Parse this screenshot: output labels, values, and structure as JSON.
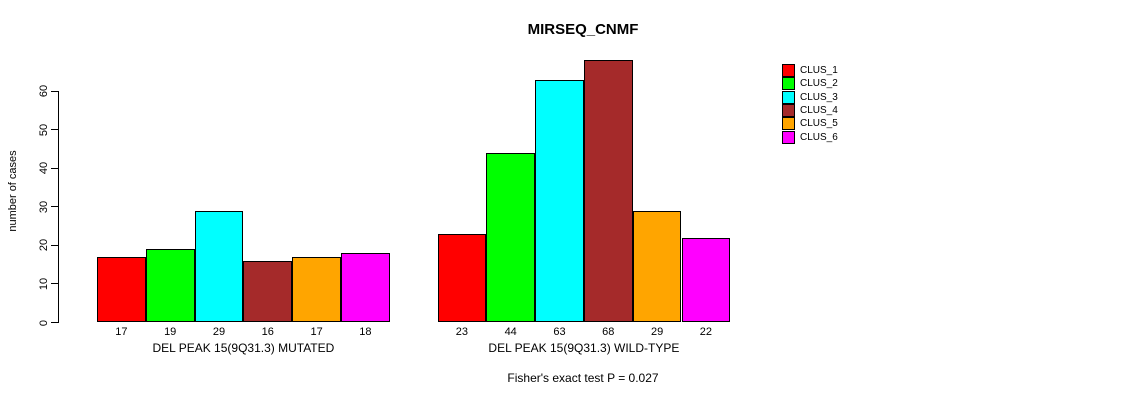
{
  "chart_data": {
    "type": "bar",
    "title": "MIRSEQ_CNMF",
    "ylabel": "number of cases",
    "xlabel": "",
    "ylim": [
      0,
      60
    ],
    "yticks": [
      0,
      10,
      20,
      30,
      40,
      50,
      60
    ],
    "grid": false,
    "legend_position": "right",
    "categories": [
      "DEL PEAK 15(9Q31.3) MUTATED",
      "DEL PEAK 15(9Q31.3) WILD-TYPE"
    ],
    "series": [
      {
        "name": "CLUS_1",
        "color": "#FF0000",
        "values": [
          17,
          23
        ]
      },
      {
        "name": "CLUS_2",
        "color": "#00FF00",
        "values": [
          19,
          44
        ]
      },
      {
        "name": "CLUS_3",
        "color": "#00FFFF",
        "values": [
          29,
          63
        ]
      },
      {
        "name": "CLUS_4",
        "color": "#A52A2A",
        "values": [
          16,
          68
        ]
      },
      {
        "name": "CLUS_5",
        "color": "#FFA500",
        "values": [
          17,
          29
        ]
      },
      {
        "name": "CLUS_6",
        "color": "#FF00FF",
        "values": [
          18,
          22
        ]
      }
    ],
    "bar_value_labels": [
      [
        17,
        19,
        29,
        16,
        17,
        18
      ],
      [
        23,
        44,
        63,
        68,
        29,
        22
      ]
    ],
    "annotation": "Fisher's exact test P = 0.027"
  }
}
